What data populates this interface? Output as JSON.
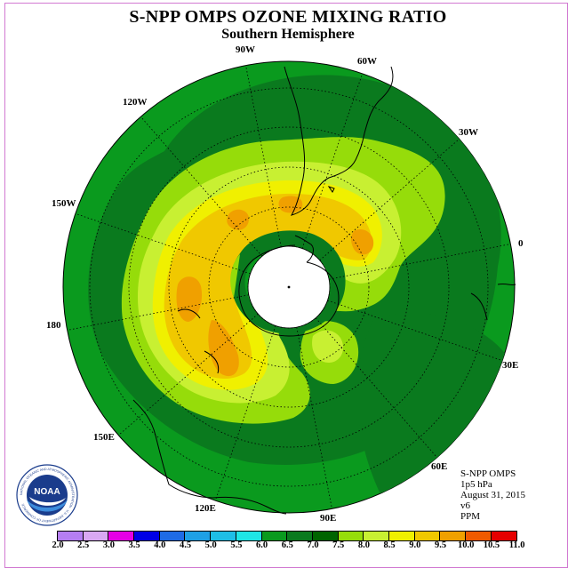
{
  "header": {
    "title": "S-NPP OMPS OZONE MIXING RATIO",
    "subtitle": "Southern Hemisphere"
  },
  "longitude_labels": [
    "90W",
    "60W",
    "30W",
    "0",
    "30E",
    "60E",
    "90E",
    "120E",
    "150E",
    "180",
    "150W",
    "120W"
  ],
  "info": {
    "instrument": "S-NPP OMPS",
    "pressure_level": "1p5 hPa",
    "date": "August 31, 2015",
    "version": "v6",
    "units": "PPM"
  },
  "colorbar": {
    "labels": [
      "2.0",
      "2.5",
      "3.0",
      "3.5",
      "4.0",
      "4.5",
      "5.0",
      "5.5",
      "6.0",
      "6.5",
      "7.0",
      "7.5",
      "8.0",
      "8.5",
      "9.0",
      "9.5",
      "10.0",
      "10.5",
      "11.0"
    ],
    "colors": [
      "#b57ef2",
      "#d9a8f2",
      "#e600e6",
      "#0000e6",
      "#1e6be6",
      "#1ea0e6",
      "#1ebee6",
      "#1ee6e6",
      "#0a9a1e",
      "#0a7a1e",
      "#006400",
      "#96dc0a",
      "#c8f032",
      "#f0f000",
      "#f0c800",
      "#f0a000",
      "#f05a00",
      "#e60000",
      "#8c5a32"
    ]
  },
  "logo": {
    "text": "NOAA",
    "ring_text": "NATIONAL OCEANIC AND ATMOSPHERIC ADMINISTRATION · U.S. DEPARTMENT OF COMMERCE"
  },
  "map_colors": {
    "level_6_0": "#0a9a1e",
    "level_6_5": "#0a7a1e",
    "level_7_5": "#96dc0a",
    "level_8_0": "#c8f032",
    "level_8_5": "#f0f000",
    "level_9_0": "#f0c800",
    "level_9_5": "#f0a000",
    "polar_no_data": "#ffffff"
  }
}
